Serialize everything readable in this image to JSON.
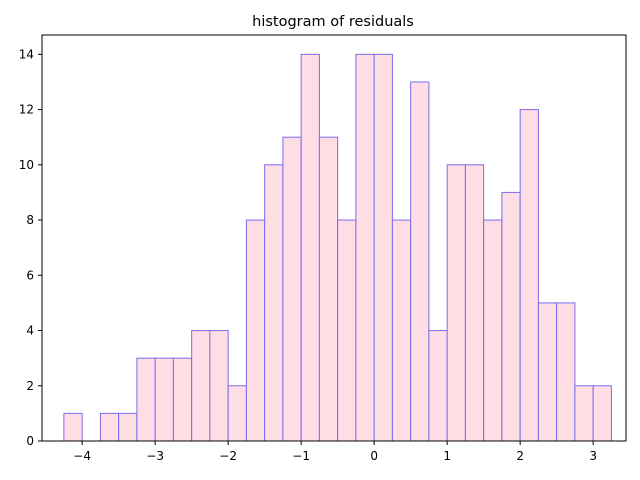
{
  "chart_data": {
    "type": "bar",
    "title": "histogram of residuals",
    "xlabel": "",
    "ylabel": "",
    "xlim": [
      -4.55,
      3.45
    ],
    "ylim": [
      0,
      14.7
    ],
    "bin_start": -4.25,
    "bin_width": 0.25,
    "counts": [
      1,
      0,
      1,
      1,
      3,
      3,
      3,
      4,
      4,
      2,
      8,
      10,
      11,
      14,
      11,
      8,
      14,
      14,
      8,
      13,
      4,
      10,
      10,
      8,
      9,
      12,
      5,
      5,
      2,
      2
    ],
    "x_ticks": [
      -4,
      -3,
      -2,
      -1,
      0,
      1,
      2,
      3
    ],
    "x_tick_labels": [
      "−4",
      "−3",
      "−2",
      "−1",
      "0",
      "1",
      "2",
      "3"
    ],
    "y_ticks": [
      0,
      2,
      4,
      6,
      8,
      10,
      12,
      14
    ],
    "y_tick_labels": [
      "0",
      "2",
      "4",
      "6",
      "8",
      "10",
      "12",
      "14"
    ],
    "grid": false,
    "colors": {
      "bar_fill": "#ffdde4",
      "bar_edge": "#7a6cf0",
      "axes": "#000000"
    }
  }
}
